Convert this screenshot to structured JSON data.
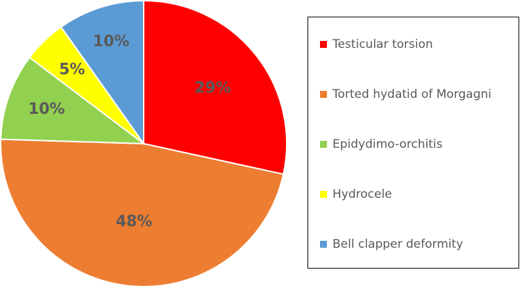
{
  "chart_data": {
    "type": "pie",
    "categories": [
      "Testicular torsion",
      "Torted hydatid of Morgagni",
      "Epidydimo-orchitis",
      "Hydrocele",
      "Bell clapper deformity"
    ],
    "values": [
      29,
      48,
      10,
      5,
      10
    ],
    "labels": [
      "29%",
      "48%",
      "10%",
      "5%",
      "10%"
    ],
    "colors": [
      "#ff0000",
      "#ed7d31",
      "#92d050",
      "#ffff00",
      "#5b9bd5"
    ],
    "legend_position": "right",
    "start_angle": "12 o'clock, clockwise"
  }
}
